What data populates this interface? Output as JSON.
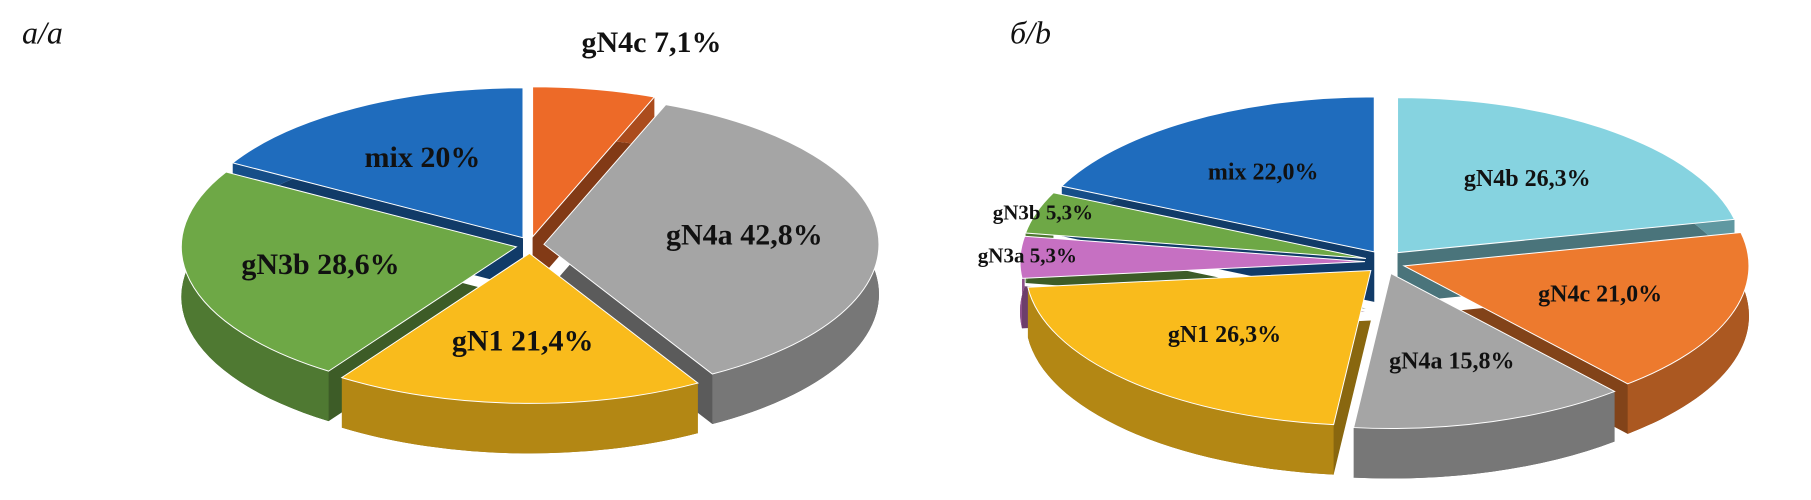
{
  "chart_data": [
    {
      "type": "pie",
      "title": "а/a",
      "categories": [
        "gN4c",
        "gN4a",
        "gN1",
        "gN3b",
        "mix"
      ],
      "values": [
        7.1,
        42.8,
        21.4,
        28.6,
        20
      ],
      "value_labels": [
        "7,1%",
        "42,8%",
        "21,4%",
        "28,6%",
        "20%"
      ],
      "colors": [
        "#ed6a28",
        "#a5a5a5",
        "#f9bb1c",
        "#6ea846",
        "#1f6cbd"
      ]
    },
    {
      "type": "pie",
      "title": "б/b",
      "categories": [
        "gN4b",
        "gN4c",
        "gN4a",
        "gN1",
        "gN3a",
        "gN3b",
        "mix"
      ],
      "values": [
        26.3,
        21.0,
        15.8,
        26.3,
        5.3,
        5.3,
        22.0
      ],
      "value_labels": [
        "26,3%",
        "21,0%",
        "15,8%",
        "26,3%",
        "5,3%",
        "5,3%",
        "22,0%"
      ],
      "colors": [
        "#86d3e0",
        "#ed7a2e",
        "#a5a5a5",
        "#f9bb1c",
        "#c670c2",
        "#6ea846",
        "#1f6cbd"
      ]
    }
  ]
}
